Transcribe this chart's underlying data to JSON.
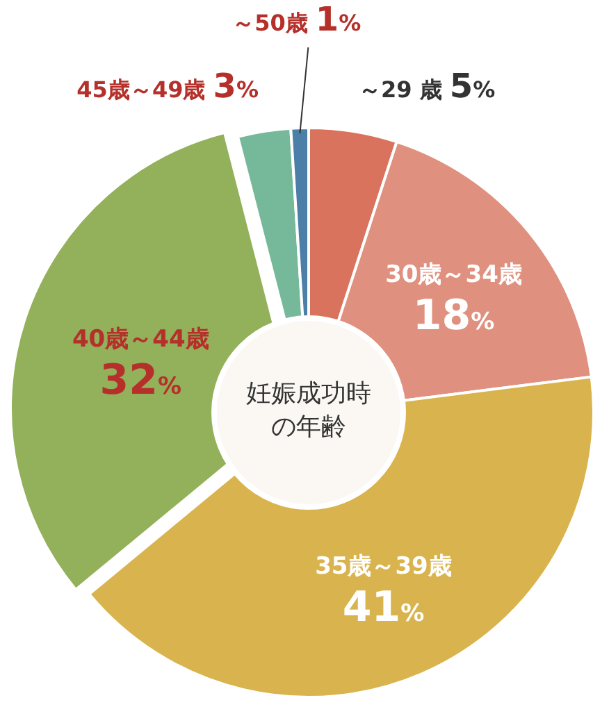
{
  "chart_data": {
    "type": "pie",
    "title": "妊娠成功時の年齢",
    "categories": [
      "～29 歳",
      "30歳～34歳",
      "35歳～39歳",
      "40歳～44歳",
      "45歳～49歳",
      "～50歳"
    ],
    "values": [
      5,
      18,
      41,
      32,
      3,
      1
    ],
    "colors": [
      "#d9735e",
      "#e0907e",
      "#d9b44e",
      "#93b05a",
      "#76b89a",
      "#4b7fa8"
    ],
    "value_labels": [
      "5%",
      "18%",
      "41%",
      "32%",
      "3%",
      "1%"
    ]
  }
}
